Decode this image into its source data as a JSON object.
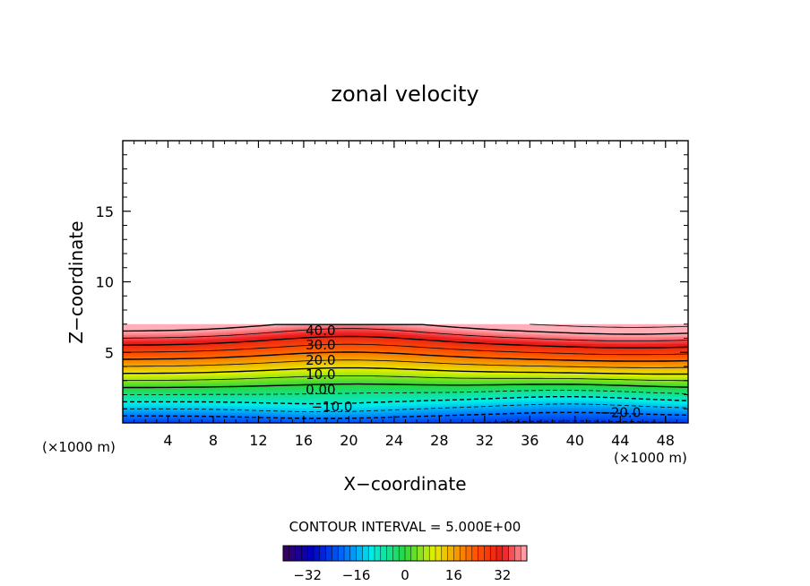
{
  "chart_data": {
    "type": "heatmap",
    "title": "zonal velocity",
    "xlabel": "X−coordinate",
    "ylabel": "Z−coordinate",
    "x_unit_left": "(×1000 m)",
    "x_unit_right": "(×1000 m)",
    "xlim": [
      0,
      50
    ],
    "ylim": [
      0,
      20
    ],
    "x_ticks": [
      4,
      8,
      12,
      16,
      20,
      24,
      28,
      32,
      36,
      40,
      44,
      48
    ],
    "y_ticks": [
      5,
      10,
      15
    ],
    "field_top": 7,
    "contour_interval_text": "CONTOUR INTERVAL = 5.000E+00",
    "contour_labels": [
      {
        "text": "40.0",
        "x": 17.5,
        "z": 6.6
      },
      {
        "text": "30.0",
        "x": 17.5,
        "z": 5.6
      },
      {
        "text": "20.0",
        "x": 17.5,
        "z": 4.5
      },
      {
        "text": "10.0",
        "x": 17.5,
        "z": 3.5
      },
      {
        "text": "0.00",
        "x": 17.5,
        "z": 2.4
      },
      {
        "text": "−10.0",
        "x": 18.5,
        "z": 1.2
      },
      {
        "text": "−20.0",
        "x": 44.0,
        "z": 0.8
      }
    ],
    "colorbar": {
      "min": -40,
      "max": 40,
      "ticks": [
        -32,
        -16,
        0,
        16,
        32
      ],
      "tick_labels": [
        "−32",
        "−16",
        "0",
        "16",
        "32"
      ]
    }
  }
}
